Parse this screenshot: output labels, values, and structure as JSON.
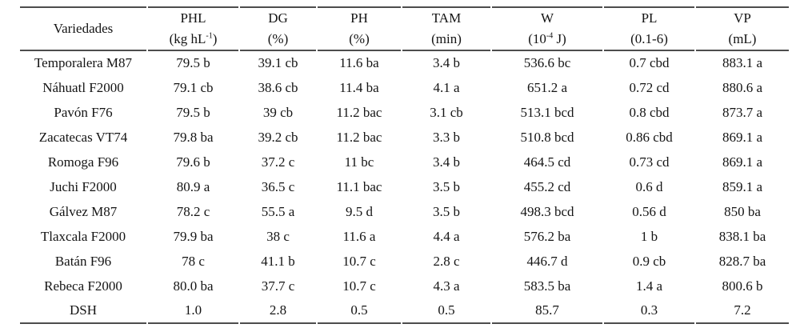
{
  "table": {
    "corner_header": "Variedades",
    "columns": [
      {
        "label": "PHL",
        "unit": {
          "pre": "(kg hL",
          "sup": "-1",
          "post": ")"
        }
      },
      {
        "label": "DG",
        "unit": {
          "pre": "(%)",
          "sup": "",
          "post": ""
        }
      },
      {
        "label": "PH",
        "unit": {
          "pre": "(%)",
          "sup": "",
          "post": ""
        }
      },
      {
        "label": "TAM",
        "unit": {
          "pre": "(min)",
          "sup": "",
          "post": ""
        }
      },
      {
        "label": "W",
        "unit": {
          "pre": "(10",
          "sup": "-4",
          "post": " J)"
        }
      },
      {
        "label": "PL",
        "unit": {
          "pre": "(0.1-6)",
          "sup": "",
          "post": ""
        }
      },
      {
        "label": "VP",
        "unit": {
          "pre": "(mL)",
          "sup": "",
          "post": ""
        }
      }
    ],
    "rows": [
      {
        "variety": "Temporalera M87",
        "values": [
          "79.5 b",
          "39.1 cb",
          "11.6 ba",
          "3.4 b",
          "536.6 bc",
          "0.7 cbd",
          "883.1 a"
        ]
      },
      {
        "variety": "Náhuatl F2000",
        "values": [
          "79.1 cb",
          "38.6 cb",
          "11.4 ba",
          "4.1 a",
          "651.2 a",
          "0.72 cd",
          "880.6 a"
        ]
      },
      {
        "variety": "Pavón F76",
        "values": [
          "79.5 b",
          "39 cb",
          "11.2 bac",
          "3.1 cb",
          "513.1 bcd",
          "0.8 cbd",
          "873.7 a"
        ]
      },
      {
        "variety": "Zacatecas VT74",
        "values": [
          "79.8 ba",
          "39.2 cb",
          "11.2 bac",
          "3.3 b",
          "510.8 bcd",
          "0.86 cbd",
          "869.1 a"
        ]
      },
      {
        "variety": "Romoga F96",
        "values": [
          "79.6 b",
          "37.2 c",
          "11 bc",
          "3.4 b",
          "464.5 cd",
          "0.73 cd",
          "869.1 a"
        ]
      },
      {
        "variety": "Juchi F2000",
        "values": [
          "80.9 a",
          "36.5 c",
          "11.1 bac",
          "3.5 b",
          "455.2 cd",
          "0.6 d",
          "859.1 a"
        ]
      },
      {
        "variety": "Gálvez M87",
        "values": [
          "78.2 c",
          "55.5 a",
          "9.5 d",
          "3.5 b",
          "498.3 bcd",
          "0.56 d",
          "850 ba"
        ]
      },
      {
        "variety": "Tlaxcala F2000",
        "values": [
          "79.9 ba",
          "38 c",
          "11.6 a",
          "4.4 a",
          "576.2 ba",
          "1 b",
          "838.1 ba"
        ]
      },
      {
        "variety": "Batán F96",
        "values": [
          "78 c",
          "41.1 b",
          "10.7 c",
          "2.8 c",
          "446.7 d",
          "0.9 cb",
          "828.7 ba"
        ]
      },
      {
        "variety": "Rebeca F2000",
        "values": [
          "80.0 ba",
          "37.7 c",
          "10.7 c",
          "4.3 a",
          "583.5 ba",
          "1.4 a",
          "800.6 b"
        ]
      },
      {
        "variety": "DSH",
        "values": [
          "1.0",
          "2.8",
          "0.5",
          "0.5",
          "85.7",
          "0.3",
          "7.2"
        ]
      }
    ]
  }
}
